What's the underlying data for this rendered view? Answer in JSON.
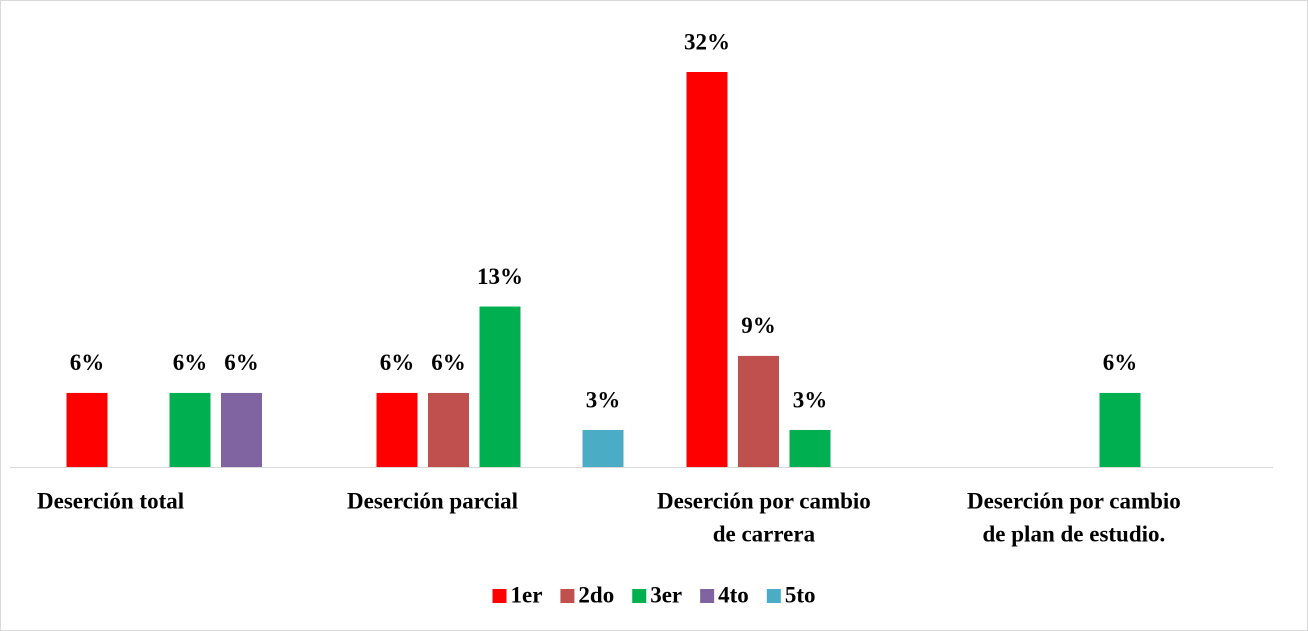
{
  "chart_data": {
    "type": "bar",
    "categories": [
      [
        "Deserción total"
      ],
      [
        "Deserción parcial"
      ],
      [
        "Deserción por cambio",
        "de carrera"
      ],
      [
        "Deserción por cambio",
        "de plan de estudio."
      ]
    ],
    "series": [
      {
        "name": "1er",
        "color": "#ff0000",
        "values": [
          6,
          6,
          32,
          null
        ],
        "value_labels": [
          "6%",
          "6%",
          "32%",
          null
        ]
      },
      {
        "name": "2do",
        "color": "#c0504d",
        "values": [
          null,
          6,
          9,
          null
        ],
        "value_labels": [
          null,
          "6%",
          "9%",
          null
        ]
      },
      {
        "name": "3er",
        "color": "#00b050",
        "values": [
          6,
          13,
          3,
          6
        ],
        "value_labels": [
          "6%",
          "13%",
          "3%",
          "6%"
        ]
      },
      {
        "name": "4to",
        "color": "#8064a2",
        "values": [
          6,
          null,
          null,
          null
        ],
        "value_labels": [
          "6%",
          null,
          null,
          null
        ]
      },
      {
        "name": "5to",
        "color": "#4bacc6",
        "values": [
          null,
          3,
          null,
          null
        ],
        "value_labels": [
          null,
          "3%",
          null,
          null
        ]
      }
    ],
    "legend": "bottom"
  }
}
